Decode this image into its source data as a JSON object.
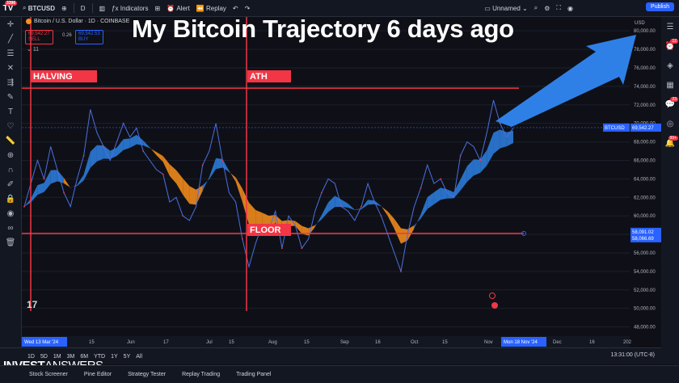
{
  "overlay_title": "My Bitcoin Trajectory 6 days ago",
  "topbar": {
    "notification_count": "3396",
    "symbol": "BTCUSD",
    "interval": "D",
    "indicators_label": "Indicators",
    "alert_label": "Alert",
    "replay_label": "Replay",
    "layout_name": "Unnamed",
    "publish_label": "Publish"
  },
  "legend": {
    "name": "Bitcoin / U.S. Dollar · 1D · COINBASE",
    "sell_price": "69,542.27",
    "sell_label": "SELL",
    "spread": "0.26",
    "buy_price": "69,542.53",
    "buy_label": "BUY",
    "indicator_count": "11"
  },
  "labels": {
    "halving": "HALVING",
    "ath": "ATH",
    "floor": "FLOOR"
  },
  "price_axis": {
    "currency": "USD",
    "ticks": [
      "80,000.00",
      "78,000.00",
      "76,000.00",
      "74,000.00",
      "72,000.00",
      "70,000.00",
      "68,000.00",
      "66,000.00",
      "64,000.00",
      "62,000.00",
      "60,000.00",
      "58,000.00",
      "56,000.00",
      "54,000.00",
      "52,000.00",
      "50,000.00",
      "48,000.00"
    ],
    "current_label": "BTCUSD",
    "current_price": "69,542.27",
    "floor_price_1": "58,091.02",
    "floor_price_2": "58,066.69"
  },
  "time_axis": {
    "ticks": [
      "15",
      "Jun",
      "17",
      "Jul",
      "15",
      "Aug",
      "15",
      "Sep",
      "16",
      "Oct",
      "15",
      "Nov",
      "Dec",
      "16",
      "202"
    ],
    "start_label": "Wed 13 Mar '24",
    "end_label": "Mon 18 Nov '24"
  },
  "bottombar": {
    "ranges": [
      "1D",
      "5D",
      "1M",
      "3M",
      "6M",
      "YTD",
      "1Y",
      "5Y",
      "All"
    ],
    "time": "13:31:00 (UTC-8)"
  },
  "tabs": [
    "Stock Screener",
    "Pine Editor",
    "Strategy Tester",
    "Replay Trading",
    "Trading Panel"
  ],
  "watermark": {
    "bold": "INVEST",
    "rest": "ANSWERS"
  },
  "right_badges": {
    "alerts": "12",
    "ideas": "23",
    "news": "99+"
  },
  "chart_data": {
    "type": "line",
    "symbol": "BTCUSD",
    "ylim": [
      47000,
      81500
    ],
    "xlabel": "",
    "ylabel": "",
    "series": [
      {
        "name": "BTCUSD",
        "values": [
          61000,
          63500,
          66000,
          64000,
          67500,
          65000,
          62500,
          61000,
          64000,
          66500,
          71500,
          69000,
          67500,
          66000,
          68000,
          70000,
          68500,
          69500,
          67000,
          66000,
          65000,
          64500,
          61500,
          62000,
          60000,
          59500,
          61000,
          65500,
          67000,
          70000,
          66000,
          62500,
          61500,
          57500,
          54500,
          57000,
          59000,
          58500,
          60500,
          56500,
          60000,
          59000,
          56500,
          57500,
          60500,
          62500,
          64000,
          63500,
          61000,
          60500,
          59500,
          61000,
          63500,
          61500,
          60000,
          58000,
          56000,
          54000,
          58000,
          61000,
          63000,
          65500,
          63500,
          64000,
          62500,
          62000,
          66500,
          68000,
          67500,
          66000,
          69000,
          72500,
          70000,
          68500,
          69500
        ]
      }
    ],
    "horizontal_lines": [
      {
        "label": "ATH",
        "value": 73800
      },
      {
        "label": "FLOOR",
        "value": 58100
      }
    ],
    "vertical_lines": [
      {
        "label": "HALVING"
      },
      {
        "label": "ATH"
      }
    ]
  }
}
